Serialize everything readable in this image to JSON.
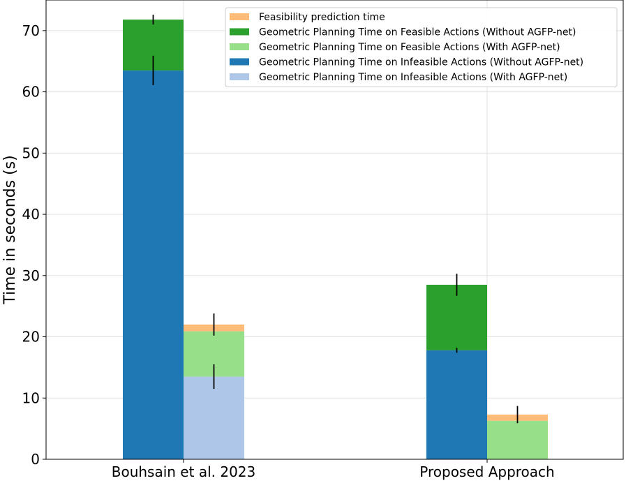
{
  "chart_data": {
    "type": "bar",
    "stacked": true,
    "grid": true,
    "legend_position": "top-right",
    "ylabel": "Time in seconds (s)",
    "ylim": [
      0,
      75
    ],
    "yticks": [
      0,
      10,
      20,
      30,
      40,
      50,
      60,
      70
    ],
    "categories": [
      "Bouhsain et al. 2023",
      "Proposed Approach"
    ],
    "legend": [
      {
        "label": "Feasibility prediction time",
        "color": "#ffbb78"
      },
      {
        "label": "Geometric Planning Time on Feasible Actions (Without AGFP-net)",
        "color": "#2ca02c"
      },
      {
        "label": "Geometric Planning Time on Feasible Actions (With AGFP-net)",
        "color": "#98df8a"
      },
      {
        "label": "Geometric Planning Time on Infeasible Actions (Without AGFP-net)",
        "color": "#1f77b4"
      },
      {
        "label": "Geometric Planning Time on Infeasible Actions (With AGFP-net)",
        "color": "#aec7e8"
      }
    ],
    "bars": [
      {
        "category": 0,
        "offset": -1,
        "segments": [
          {
            "series": "Geometric Planning Time on Infeasible Actions (Without AGFP-net)",
            "value": 63.5,
            "color": "#1f77b4",
            "err": 2.4
          },
          {
            "series": "Geometric Planning Time on Feasible Actions (Without AGFP-net)",
            "value": 8.3,
            "color": "#2ca02c",
            "err": 0.8
          }
        ]
      },
      {
        "category": 0,
        "offset": 0,
        "segments": [
          {
            "series": "Geometric Planning Time on Infeasible Actions (With AGFP-net)",
            "value": 13.5,
            "color": "#aec7e8",
            "err": 2.0
          },
          {
            "series": "Geometric Planning Time on Feasible Actions (With AGFP-net)",
            "value": 7.4,
            "color": "#98df8a",
            "err": null
          },
          {
            "series": "Feasibility prediction time",
            "value": 1.1,
            "color": "#ffbb78",
            "err": 1.8
          }
        ]
      },
      {
        "category": 1,
        "offset": -1,
        "segments": [
          {
            "series": "Geometric Planning Time on Infeasible Actions (Without AGFP-net)",
            "value": 17.8,
            "color": "#1f77b4",
            "err": 0.4
          },
          {
            "series": "Geometric Planning Time on Feasible Actions (Without AGFP-net)",
            "value": 10.7,
            "color": "#2ca02c",
            "err": 1.8
          }
        ]
      },
      {
        "category": 1,
        "offset": 0,
        "segments": [
          {
            "series": "Geometric Planning Time on Infeasible Actions (With AGFP-net)",
            "value": 0,
            "color": "#aec7e8",
            "err": null
          },
          {
            "series": "Geometric Planning Time on Feasible Actions (With AGFP-net)",
            "value": 6.3,
            "color": "#98df8a",
            "err": null
          },
          {
            "series": "Feasibility prediction time",
            "value": 1.0,
            "color": "#ffbb78",
            "err": 1.4
          }
        ]
      }
    ]
  }
}
